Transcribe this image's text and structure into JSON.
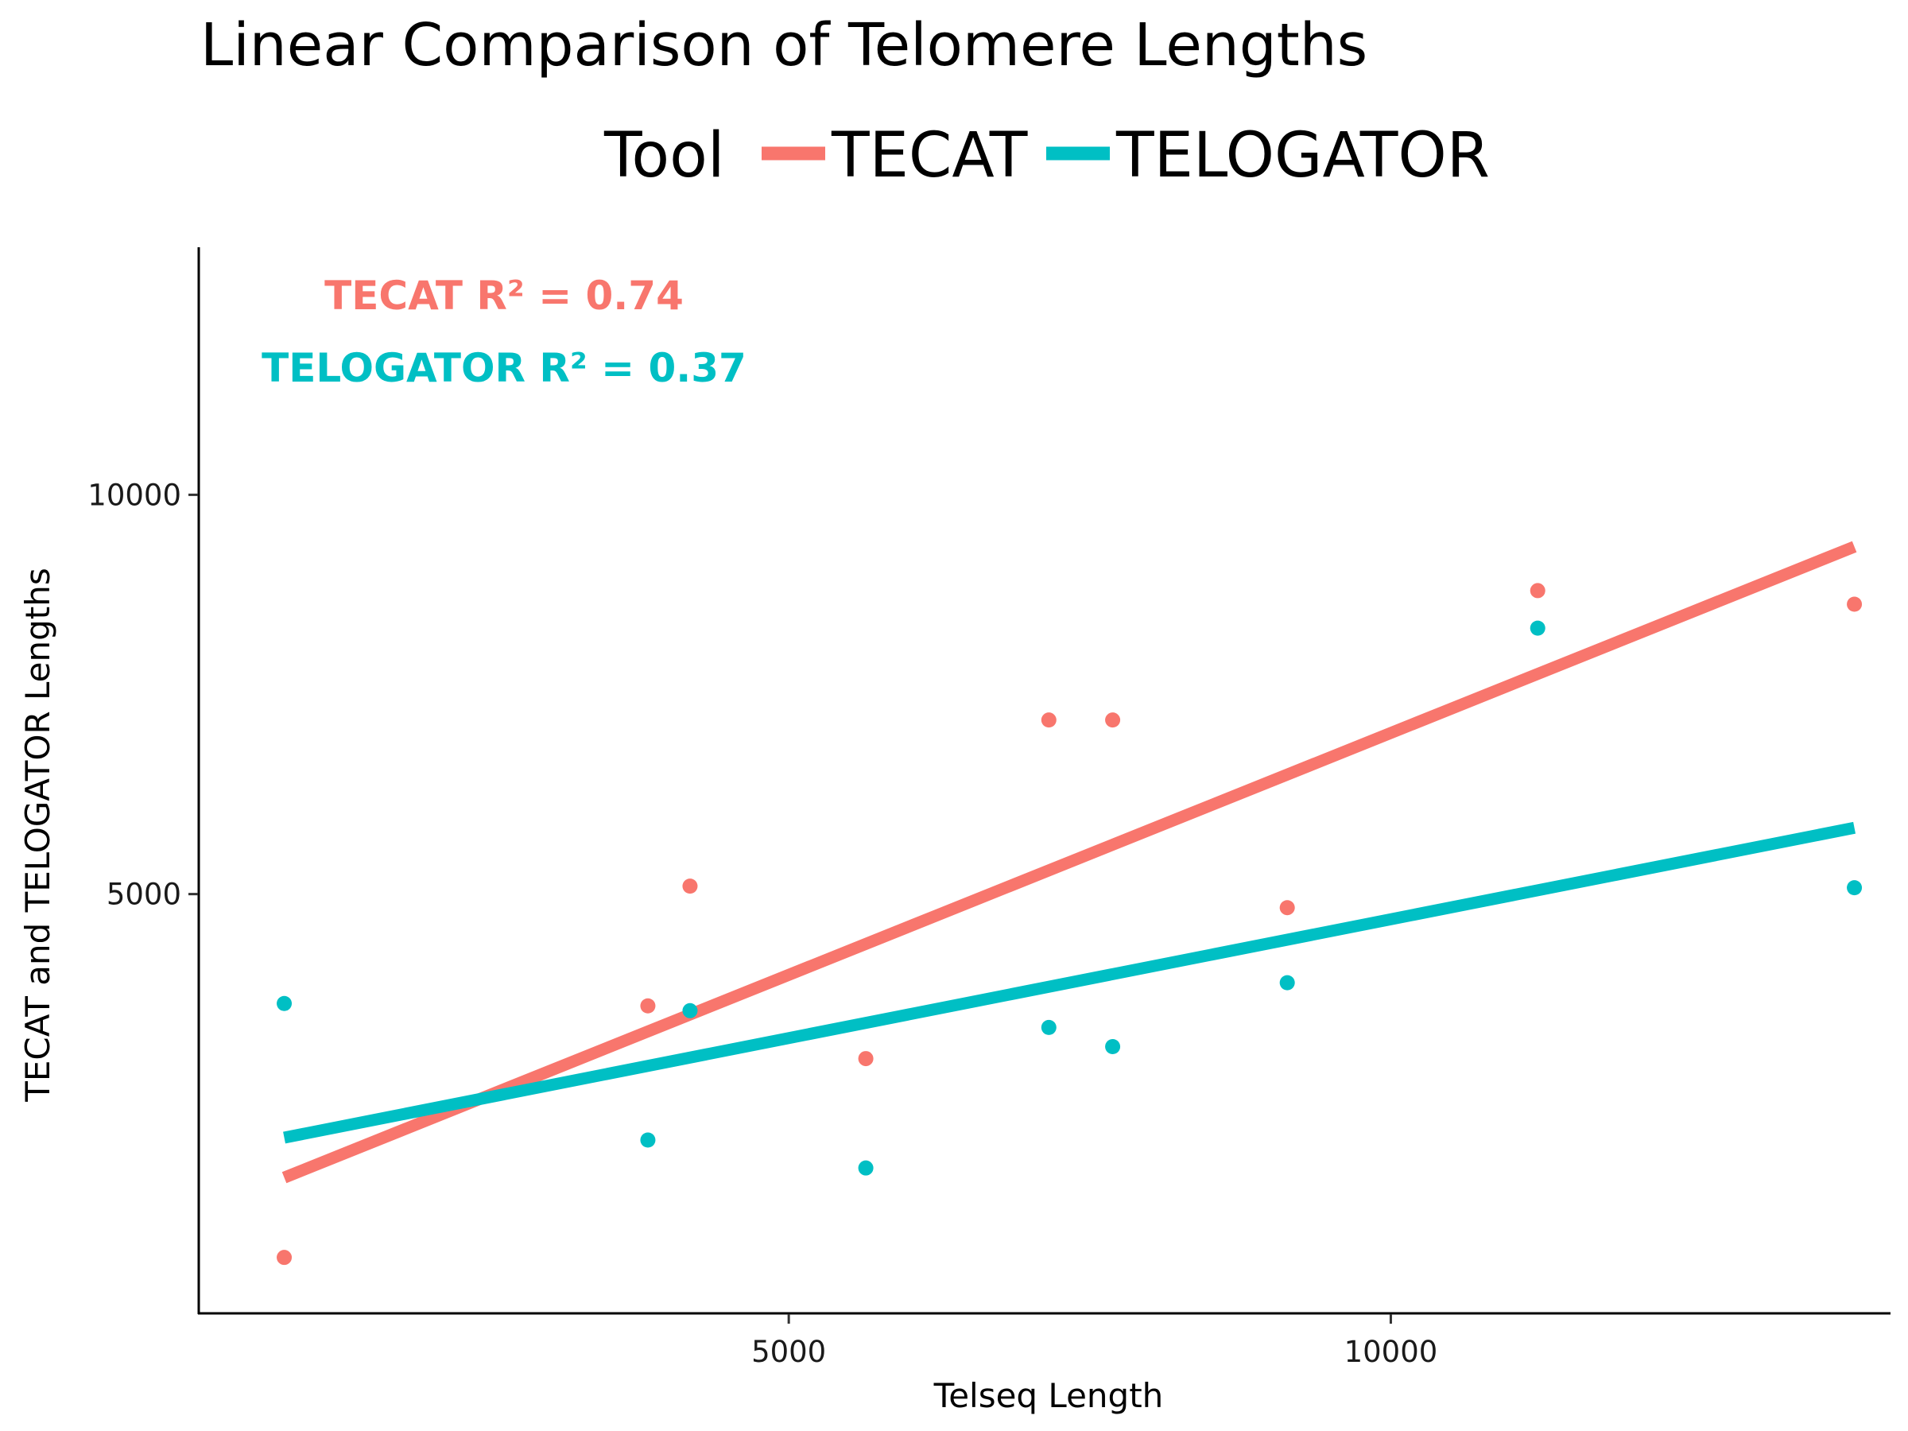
{
  "chart_data": {
    "type": "scatter",
    "title": "Linear Comparison of Telomere Lengths",
    "xlabel": "Telseq Length",
    "ylabel": "TECAT and TELOGATOR Lengths",
    "xlim": [
      100,
      14150
    ],
    "ylim": [
      -250,
      13100
    ],
    "x_ticks": [
      5000,
      10000
    ],
    "y_ticks": [
      5000,
      10000
    ],
    "x_tick_labels": [
      "5000",
      "10000"
    ],
    "y_tick_labels": [
      "5000",
      "10000"
    ],
    "grid": false,
    "legend": {
      "title": "Tool",
      "position": "top"
    },
    "series": [
      {
        "name": "TECAT",
        "color": "#F8766D",
        "points": [
          {
            "x": 810,
            "y": 450
          },
          {
            "x": 3830,
            "y": 3600
          },
          {
            "x": 4180,
            "y": 5100
          },
          {
            "x": 5640,
            "y": 2940
          },
          {
            "x": 7160,
            "y": 7180
          },
          {
            "x": 7690,
            "y": 7180
          },
          {
            "x": 9140,
            "y": 4830
          },
          {
            "x": 11220,
            "y": 8800
          },
          {
            "x": 13850,
            "y": 8630
          }
        ],
        "fit": {
          "x": [
            810,
            13850
          ],
          "y": [
            1450,
            9350
          ]
        },
        "r2_label": "TECAT R² = 0.74"
      },
      {
        "name": "TELOGATOR",
        "color": "#00BFC4",
        "points": [
          {
            "x": 810,
            "y": 3630
          },
          {
            "x": 3830,
            "y": 1920
          },
          {
            "x": 4180,
            "y": 3540
          },
          {
            "x": 5640,
            "y": 1570
          },
          {
            "x": 7160,
            "y": 3330
          },
          {
            "x": 7690,
            "y": 3090
          },
          {
            "x": 9140,
            "y": 3890
          },
          {
            "x": 11220,
            "y": 8330
          },
          {
            "x": 13850,
            "y": 5080
          }
        ],
        "fit": {
          "x": [
            810,
            13850
          ],
          "y": [
            1950,
            5830
          ]
        },
        "r2_label": "TELOGATOR R² = 0.37"
      }
    ]
  }
}
